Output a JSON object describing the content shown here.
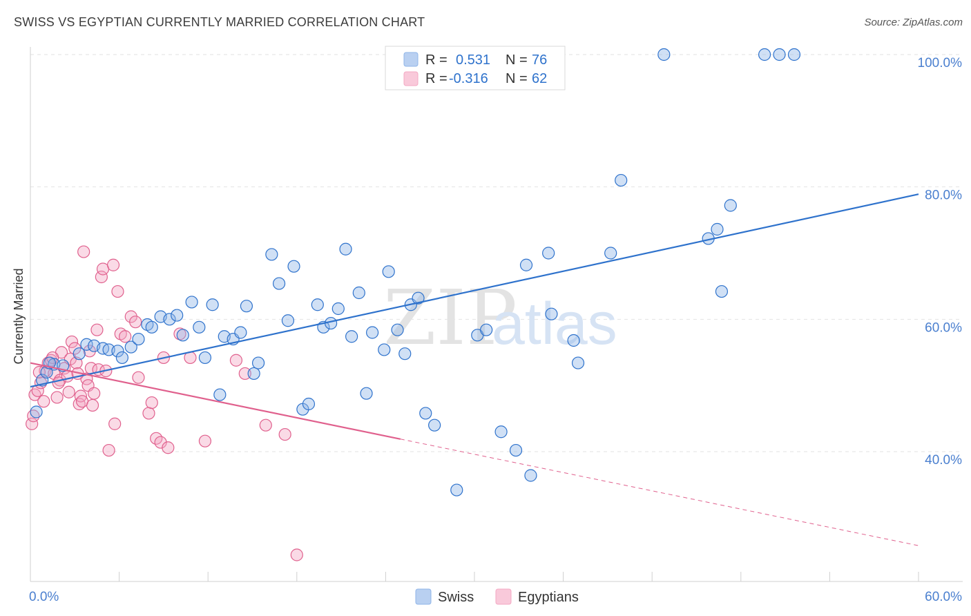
{
  "title": "SWISS VS EGYPTIAN CURRENTLY MARRIED CORRELATION CHART",
  "source": "Source: ZipAtlas.com",
  "watermark": {
    "zip": "ZIP",
    "atlas": "atlas"
  },
  "colors": {
    "swiss": "#8fb5e8",
    "swiss_line": "#2e72cc",
    "egyptians": "#f4a8c3",
    "egyptians_line": "#e0608d",
    "tick": "#4a7fcf"
  },
  "legend": {
    "r_label": "R =",
    "n_label": "N =",
    "rows": [
      {
        "r": "0.531",
        "n": "76"
      },
      {
        "r": "-0.316",
        "n": "62"
      }
    ]
  },
  "chart_data": {
    "type": "scatter",
    "title": "SWISS VS EGYPTIAN CURRENTLY MARRIED CORRELATION CHART",
    "xlabel": "",
    "ylabel": "Currently Married",
    "xlim": [
      0,
      60
    ],
    "ylim": [
      20,
      100
    ],
    "x_tick_labels": [
      "0.0%",
      "60.0%"
    ],
    "y_ticks": [
      40,
      60,
      80,
      100
    ],
    "y_tick_labels": [
      "40.0%",
      "60.0%",
      "80.0%",
      "100.0%"
    ],
    "grid": true,
    "legend_position": "bottom",
    "series": [
      {
        "name": "Swiss",
        "r": 0.531,
        "n": 76,
        "trend": {
          "x": [
            0,
            60
          ],
          "y": [
            49.8,
            78.9
          ],
          "dashed_from": null
        },
        "points": [
          [
            0.4,
            46.0
          ],
          [
            0.8,
            50.8
          ],
          [
            1.1,
            52.0
          ],
          [
            1.6,
            53.2
          ],
          [
            2.2,
            53.0
          ],
          [
            3.3,
            54.8
          ],
          [
            3.8,
            56.2
          ],
          [
            4.3,
            56.0
          ],
          [
            4.9,
            55.6
          ],
          [
            5.3,
            55.4
          ],
          [
            5.9,
            55.2
          ],
          [
            6.2,
            54.2
          ],
          [
            6.8,
            55.8
          ],
          [
            7.3,
            57.0
          ],
          [
            7.9,
            59.2
          ],
          [
            8.2,
            58.8
          ],
          [
            8.8,
            60.4
          ],
          [
            9.4,
            60.0
          ],
          [
            9.9,
            60.6
          ],
          [
            10.3,
            57.6
          ],
          [
            10.9,
            62.6
          ],
          [
            11.4,
            58.8
          ],
          [
            11.8,
            54.2
          ],
          [
            12.3,
            62.2
          ],
          [
            12.8,
            48.6
          ],
          [
            13.1,
            57.4
          ],
          [
            13.7,
            57.0
          ],
          [
            14.2,
            58.0
          ],
          [
            14.6,
            62.0
          ],
          [
            15.1,
            51.8
          ],
          [
            15.4,
            53.4
          ],
          [
            16.3,
            69.8
          ],
          [
            16.8,
            65.4
          ],
          [
            17.4,
            59.8
          ],
          [
            17.8,
            68.0
          ],
          [
            18.4,
            46.4
          ],
          [
            18.8,
            47.2
          ],
          [
            19.4,
            62.2
          ],
          [
            19.8,
            58.8
          ],
          [
            20.3,
            59.4
          ],
          [
            20.8,
            61.6
          ],
          [
            21.3,
            70.6
          ],
          [
            21.7,
            57.4
          ],
          [
            22.2,
            64.0
          ],
          [
            22.7,
            48.8
          ],
          [
            23.1,
            58.0
          ],
          [
            23.9,
            55.4
          ],
          [
            24.2,
            67.2
          ],
          [
            24.8,
            58.4
          ],
          [
            25.3,
            54.8
          ],
          [
            25.7,
            62.2
          ],
          [
            26.2,
            63.2
          ],
          [
            26.7,
            45.8
          ],
          [
            27.3,
            44.0
          ],
          [
            28.8,
            34.2
          ],
          [
            30.2,
            57.6
          ],
          [
            30.8,
            58.4
          ],
          [
            31.8,
            43.0
          ],
          [
            32.8,
            40.2
          ],
          [
            33.5,
            68.2
          ],
          [
            33.8,
            36.4
          ],
          [
            35.0,
            70.0
          ],
          [
            35.2,
            60.8
          ],
          [
            36.7,
            56.8
          ],
          [
            37.0,
            53.4
          ],
          [
            39.2,
            70.0
          ],
          [
            39.9,
            81.0
          ],
          [
            42.8,
            100.0
          ],
          [
            45.8,
            72.2
          ],
          [
            46.4,
            73.6
          ],
          [
            46.7,
            64.2
          ],
          [
            47.3,
            77.2
          ],
          [
            49.6,
            100.0
          ],
          [
            50.6,
            100.0
          ],
          [
            51.6,
            100.0
          ],
          [
            1.3,
            53.4
          ]
        ]
      },
      {
        "name": "Egyptians",
        "r": -0.316,
        "n": 62,
        "trend": {
          "x": [
            0,
            60
          ],
          "y": [
            53.4,
            25.8
          ],
          "dashed_from": 25.0
        },
        "points": [
          [
            0.1,
            44.2
          ],
          [
            0.2,
            45.4
          ],
          [
            0.3,
            48.6
          ],
          [
            0.5,
            49.2
          ],
          [
            0.7,
            50.4
          ],
          [
            0.9,
            47.6
          ],
          [
            1.0,
            52.2
          ],
          [
            1.2,
            53.4
          ],
          [
            1.4,
            53.8
          ],
          [
            1.6,
            51.8
          ],
          [
            1.8,
            48.2
          ],
          [
            2.0,
            50.8
          ],
          [
            2.1,
            55.0
          ],
          [
            2.3,
            52.6
          ],
          [
            2.5,
            51.4
          ],
          [
            2.7,
            54.0
          ],
          [
            2.8,
            56.6
          ],
          [
            3.0,
            55.6
          ],
          [
            3.1,
            53.4
          ],
          [
            3.3,
            47.2
          ],
          [
            3.4,
            48.4
          ],
          [
            3.5,
            47.6
          ],
          [
            3.6,
            70.2
          ],
          [
            3.8,
            51.0
          ],
          [
            3.9,
            50.0
          ],
          [
            4.0,
            55.2
          ],
          [
            4.1,
            52.6
          ],
          [
            4.2,
            47.0
          ],
          [
            4.3,
            48.8
          ],
          [
            4.5,
            58.4
          ],
          [
            4.6,
            52.4
          ],
          [
            4.8,
            66.4
          ],
          [
            4.9,
            67.6
          ],
          [
            5.1,
            52.2
          ],
          [
            5.3,
            40.2
          ],
          [
            5.6,
            68.2
          ],
          [
            5.7,
            44.2
          ],
          [
            5.9,
            64.2
          ],
          [
            6.1,
            57.8
          ],
          [
            6.4,
            57.4
          ],
          [
            6.8,
            60.4
          ],
          [
            7.1,
            59.6
          ],
          [
            7.3,
            51.2
          ],
          [
            8.0,
            45.8
          ],
          [
            8.2,
            47.4
          ],
          [
            8.5,
            42.0
          ],
          [
            8.8,
            41.4
          ],
          [
            9.0,
            54.2
          ],
          [
            9.3,
            40.6
          ],
          [
            10.1,
            57.8
          ],
          [
            10.8,
            54.2
          ],
          [
            11.8,
            41.6
          ],
          [
            13.9,
            53.8
          ],
          [
            14.5,
            51.8
          ],
          [
            15.9,
            44.0
          ],
          [
            17.2,
            42.6
          ],
          [
            18.0,
            24.4
          ],
          [
            1.9,
            50.4
          ],
          [
            2.6,
            49.0
          ],
          [
            0.6,
            52.0
          ],
          [
            3.2,
            51.8
          ],
          [
            1.5,
            54.2
          ]
        ]
      }
    ]
  }
}
